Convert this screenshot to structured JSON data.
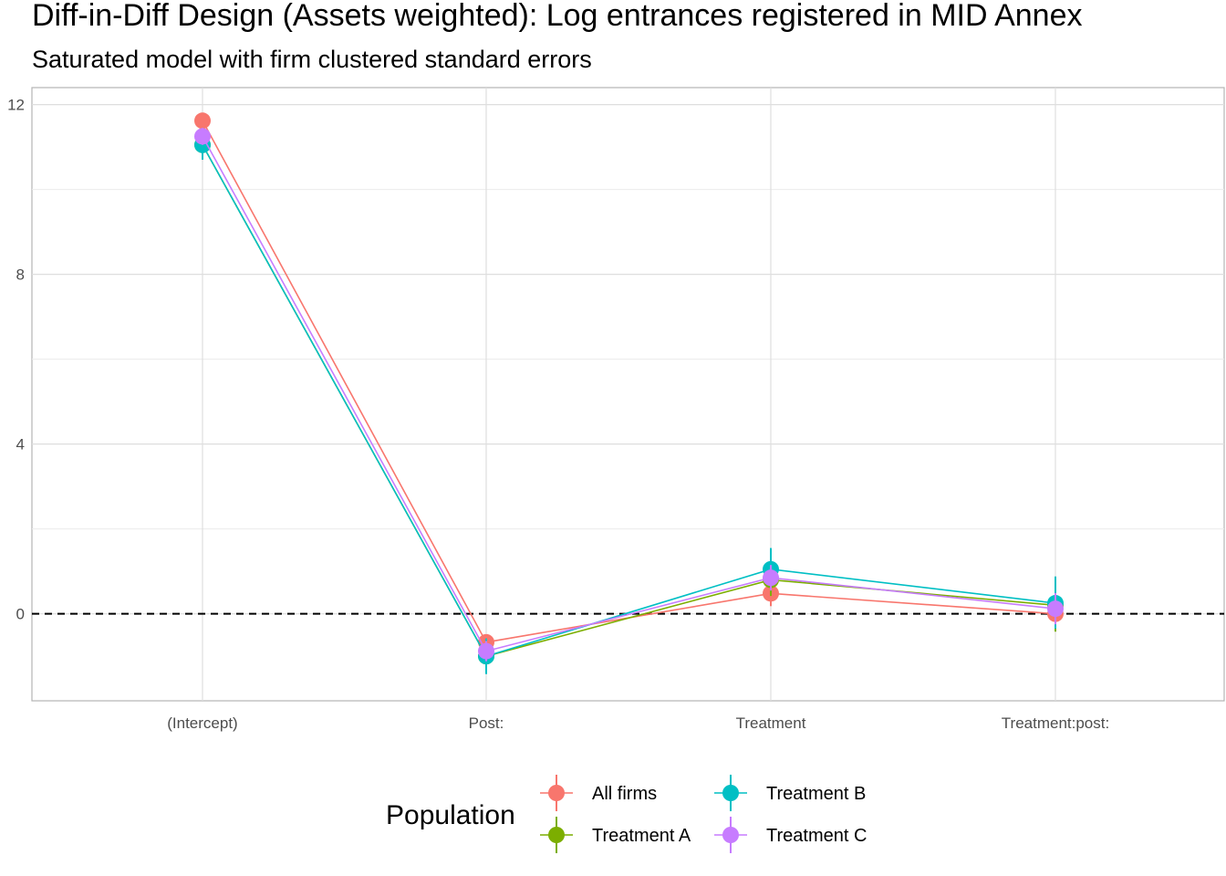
{
  "chart_data": {
    "type": "line",
    "title": "Diff-in-Diff Design (Assets weighted): Log entrances registered in MID Annex",
    "subtitle": "Saturated model with firm clustered standard errors",
    "xlabel": "",
    "ylabel": "",
    "categories": [
      "(Intercept)",
      "Post:",
      "Treatment",
      "Treatment:post:"
    ],
    "y_ticks": [
      0,
      4,
      8,
      12
    ],
    "ylim": [
      -2.05,
      12.4
    ],
    "reference_line": {
      "y": 0,
      "style": "dashed",
      "color": "#000000"
    },
    "grid": true,
    "legend": {
      "title": "Population",
      "position": "bottom"
    },
    "series": [
      {
        "name": "All firms",
        "color": "#F8766D",
        "values": [
          11.62,
          -0.67,
          0.48,
          0.0
        ],
        "lower": [
          11.5,
          -0.82,
          0.18,
          -0.3
        ],
        "upper": [
          11.74,
          -0.52,
          0.78,
          0.3
        ]
      },
      {
        "name": "Treatment A",
        "color": "#7CAE00",
        "values": [
          11.05,
          -1.0,
          0.8,
          0.2
        ],
        "lower": [
          10.75,
          -1.38,
          0.42,
          -0.42
        ],
        "upper": [
          11.35,
          -0.62,
          1.18,
          0.82
        ]
      },
      {
        "name": "Treatment B",
        "color": "#00BFC4",
        "values": [
          11.05,
          -1.0,
          1.05,
          0.25
        ],
        "lower": [
          10.7,
          -1.42,
          0.55,
          -0.35
        ],
        "upper": [
          11.4,
          -0.58,
          1.55,
          0.88
        ]
      },
      {
        "name": "Treatment C",
        "color": "#C77CFF",
        "values": [
          11.25,
          -0.88,
          0.85,
          0.12
        ],
        "lower": [
          11.05,
          -1.12,
          0.55,
          -0.25
        ],
        "upper": [
          11.45,
          -0.64,
          1.15,
          0.49
        ]
      }
    ]
  }
}
